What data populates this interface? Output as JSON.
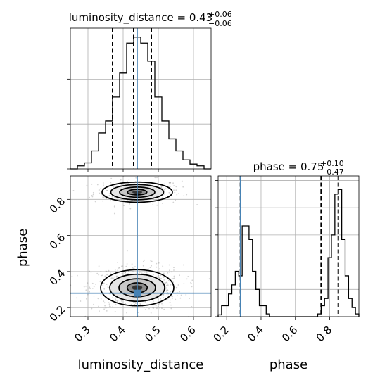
{
  "chart_data": {
    "type": "corner",
    "parameters": [
      "luminosity_distance",
      "phase"
    ],
    "truths": {
      "luminosity_distance": 0.44,
      "phase": 0.28
    },
    "truth_color": "#4682b4",
    "panels": [
      {
        "id": "hist-luminosity_distance",
        "type": "histogram",
        "param": "luminosity_distance",
        "title": {
          "label": "luminosity_distance",
          "value": "0.43",
          "plus": "+0.06",
          "minus": "−0.06"
        },
        "bin_edges": [
          0.25,
          0.27,
          0.29,
          0.31,
          0.33,
          0.35,
          0.37,
          0.39,
          0.41,
          0.43,
          0.45,
          0.47,
          0.49,
          0.51,
          0.53,
          0.55,
          0.57,
          0.59,
          0.61,
          0.63,
          0.65
        ],
        "counts": [
          0,
          0.5,
          1,
          3,
          6,
          8,
          12,
          16,
          21,
          22,
          21,
          18,
          12,
          8,
          5,
          3,
          1.5,
          0.8,
          0.5,
          0
        ],
        "quantiles": [
          0.37,
          0.43,
          0.48
        ],
        "xlim": [
          0.25,
          0.65
        ],
        "ylim": [
          0,
          23.5
        ],
        "xticks": [
          0.3,
          0.4,
          0.5,
          0.6
        ],
        "yticks": [
          0,
          7.5,
          15,
          22.5
        ]
      },
      {
        "id": "hist-phase",
        "type": "histogram",
        "param": "phase",
        "title": {
          "label": "phase",
          "value": "0.75",
          "plus": "+0.10",
          "minus": "−0.47"
        },
        "bin_edges": [
          0.15,
          0.17,
          0.19,
          0.21,
          0.23,
          0.25,
          0.27,
          0.29,
          0.31,
          0.33,
          0.35,
          0.37,
          0.39,
          0.41,
          0.43,
          0.45,
          0.47,
          0.49,
          0.51,
          0.53,
          0.55,
          0.57,
          0.59,
          0.61,
          0.63,
          0.65,
          0.67,
          0.69,
          0.71,
          0.73,
          0.75,
          0.77,
          0.79,
          0.81,
          0.83,
          0.85,
          0.87,
          0.89,
          0.91,
          0.93,
          0.95,
          0.97
        ],
        "counts": [
          0.2,
          1.2,
          1.2,
          2.5,
          3.5,
          5,
          4.5,
          10,
          10,
          8.5,
          5,
          3,
          1.2,
          1.2,
          0.3,
          0,
          0,
          0,
          0,
          0,
          0,
          0,
          0,
          0,
          0,
          0,
          0,
          0,
          0,
          0.3,
          1.2,
          2,
          6.5,
          9,
          13.5,
          14,
          8.5,
          4.5,
          2,
          1,
          0.3
        ],
        "quantiles": [
          0.28,
          0.75,
          0.85
        ],
        "xlim": [
          0.15,
          0.97
        ],
        "ylim": [
          0,
          15.5
        ],
        "xticks": [
          0.2,
          0.4,
          0.6,
          0.8
        ],
        "yticks": [
          0,
          3,
          6,
          9,
          12,
          15
        ]
      },
      {
        "id": "2d-luminosity_distance-phase",
        "type": "2d-density",
        "x": "luminosity_distance",
        "y": "phase",
        "xlim": [
          0.25,
          0.65
        ],
        "ylim": [
          0.15,
          0.93
        ],
        "xticks": [
          0.3,
          0.4,
          0.5,
          0.6
        ],
        "yticks": [
          0.2,
          0.4,
          0.6,
          0.8
        ],
        "xlabel": "luminosity_distance",
        "ylabel": "phase",
        "modes": [
          {
            "cx": 0.44,
            "cy": 0.84,
            "sx": 0.05,
            "sy": 0.028,
            "weight": 0.3
          },
          {
            "cx": 0.44,
            "cy": 0.31,
            "sx": 0.052,
            "sy": 0.05,
            "weight": 0.7
          }
        ]
      },
      {
        "id": "hist-phase-x-axis",
        "xlabel": "phase"
      }
    ]
  }
}
